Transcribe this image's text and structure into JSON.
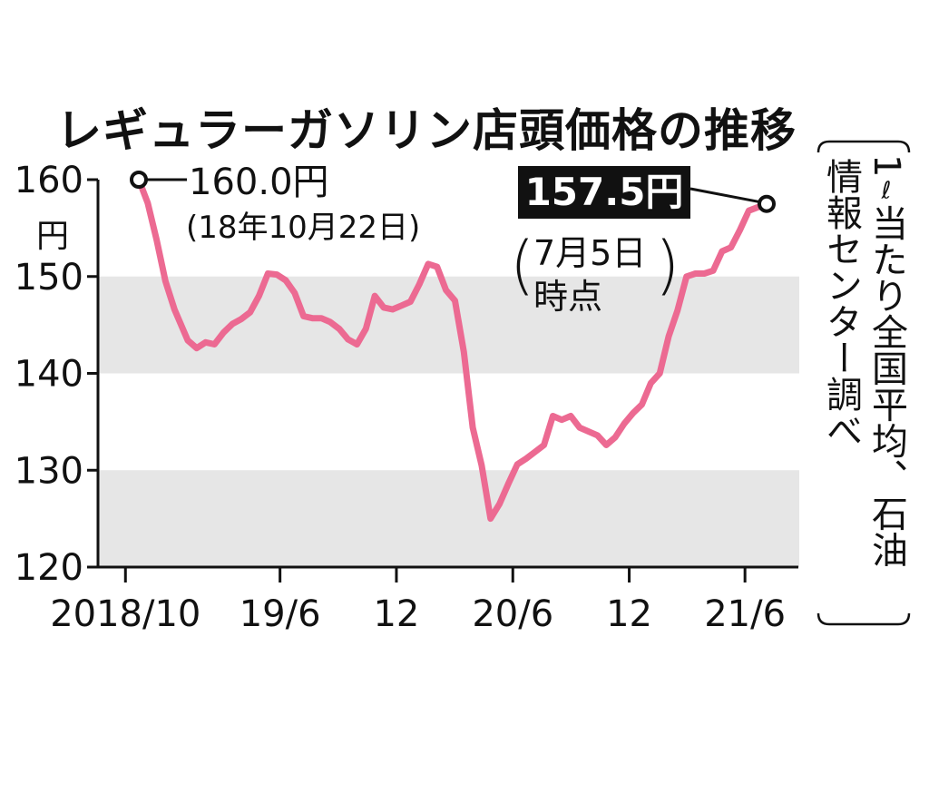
{
  "chart_data": {
    "type": "line",
    "title": "レギュラーガソリン店頭価格の推移",
    "ylabel": "円",
    "ylim": [
      120,
      160
    ],
    "yticks": [
      "160",
      "150",
      "140",
      "130",
      "120"
    ],
    "xticks": [
      "2018/10",
      "19/6",
      "12",
      "20/6",
      "12",
      "21/6"
    ],
    "x_range": [
      "2018-10-22",
      "2021-07-05"
    ],
    "grid_bands": [
      [
        140,
        150
      ],
      [
        120,
        130
      ]
    ],
    "series": [
      {
        "color": "#ec6a92",
        "points": [
          [
            "2018-10-22",
            160.0
          ],
          [
            "2018-11-05",
            157.6
          ],
          [
            "2018-11-19",
            153.8
          ],
          [
            "2018-12-03",
            149.5
          ],
          [
            "2018-12-17",
            146.6
          ],
          [
            "2019-01-07",
            143.4
          ],
          [
            "2019-01-21",
            142.6
          ],
          [
            "2019-02-04",
            143.2
          ],
          [
            "2019-02-18",
            143.0
          ],
          [
            "2019-03-04",
            144.2
          ],
          [
            "2019-03-18",
            145.1
          ],
          [
            "2019-04-01",
            145.6
          ],
          [
            "2019-04-15",
            146.3
          ],
          [
            "2019-04-29",
            148.0
          ],
          [
            "2019-05-13",
            150.3
          ],
          [
            "2019-05-27",
            150.2
          ],
          [
            "2019-06-10",
            149.6
          ],
          [
            "2019-06-24",
            148.3
          ],
          [
            "2019-07-08",
            145.9
          ],
          [
            "2019-07-22",
            145.7
          ],
          [
            "2019-08-05",
            145.7
          ],
          [
            "2019-08-19",
            145.3
          ],
          [
            "2019-09-02",
            144.6
          ],
          [
            "2019-09-16",
            143.5
          ],
          [
            "2019-09-30",
            143.0
          ],
          [
            "2019-10-14",
            144.6
          ],
          [
            "2019-10-28",
            148.0
          ],
          [
            "2019-11-11",
            146.8
          ],
          [
            "2019-11-25",
            146.6
          ],
          [
            "2019-12-09",
            147.0
          ],
          [
            "2019-12-23",
            147.4
          ],
          [
            "2020-01-06",
            149.2
          ],
          [
            "2020-01-20",
            151.3
          ],
          [
            "2020-02-03",
            151.0
          ],
          [
            "2020-02-17",
            148.6
          ],
          [
            "2020-03-02",
            147.5
          ],
          [
            "2020-03-16",
            142.2
          ],
          [
            "2020-03-30",
            134.4
          ],
          [
            "2020-04-13",
            130.5
          ],
          [
            "2020-04-27",
            125.0
          ],
          [
            "2020-05-11",
            126.5
          ],
          [
            "2020-05-25",
            128.6
          ],
          [
            "2020-06-08",
            130.6
          ],
          [
            "2020-06-22",
            131.2
          ],
          [
            "2020-07-06",
            131.9
          ],
          [
            "2020-07-20",
            132.6
          ],
          [
            "2020-08-03",
            135.6
          ],
          [
            "2020-08-17",
            135.2
          ],
          [
            "2020-08-31",
            135.6
          ],
          [
            "2020-09-14",
            134.4
          ],
          [
            "2020-09-28",
            134.0
          ],
          [
            "2020-10-12",
            133.6
          ],
          [
            "2020-10-26",
            132.6
          ],
          [
            "2020-11-09",
            133.4
          ],
          [
            "2020-11-23",
            134.8
          ],
          [
            "2020-12-07",
            135.9
          ],
          [
            "2020-12-21",
            136.8
          ],
          [
            "2021-01-04",
            139.0
          ],
          [
            "2021-01-18",
            140.0
          ],
          [
            "2021-02-01",
            143.8
          ],
          [
            "2021-02-15",
            146.5
          ],
          [
            "2021-03-01",
            150.0
          ],
          [
            "2021-03-15",
            150.3
          ],
          [
            "2021-03-29",
            150.3
          ],
          [
            "2021-04-12",
            150.6
          ],
          [
            "2021-04-26",
            152.6
          ],
          [
            "2021-05-10",
            153.0
          ],
          [
            "2021-05-24",
            154.8
          ],
          [
            "2021-06-07",
            156.8
          ],
          [
            "2021-07-05",
            157.5
          ]
        ]
      }
    ],
    "annotations": {
      "start": {
        "price": "160.0円",
        "date": "(18年10月22日)"
      },
      "end": {
        "price": "157.5円",
        "date_line1": "7月5日",
        "date_line2": "時点"
      }
    },
    "source": {
      "line1": "1",
      "unit": "ℓ",
      "line1_rest": "当たり全国平均、石油",
      "line2": "情報センター調べ"
    }
  }
}
